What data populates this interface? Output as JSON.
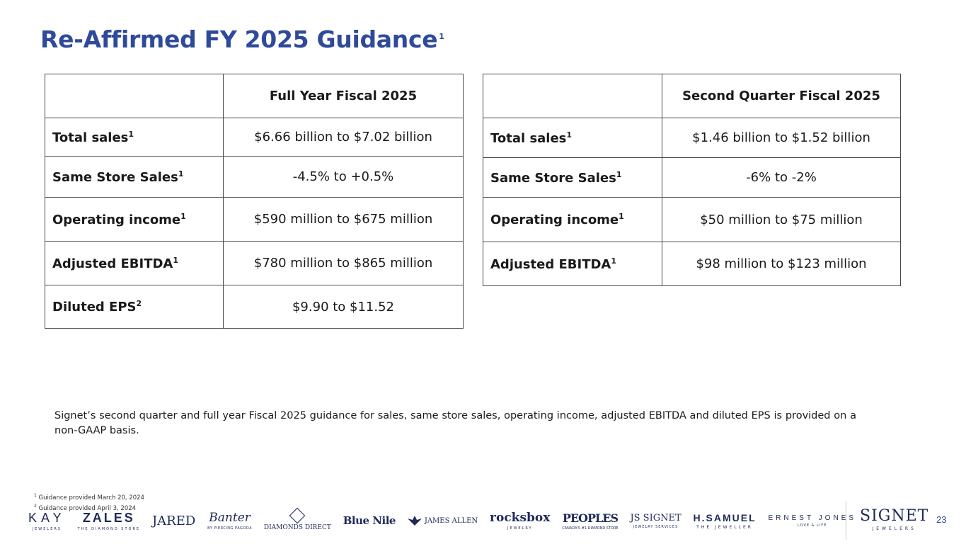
{
  "title": {
    "text": "Re-Affirmed FY 2025 Guidance",
    "sup": "1"
  },
  "full_year": {
    "header": "Full Year Fiscal 2025",
    "rows": [
      {
        "label": "Total sales",
        "sup": "1",
        "value": "$6.66 billion to $7.02 billion"
      },
      {
        "label": "Same Store Sales",
        "sup": "1",
        "value": "-4.5% to +0.5%"
      },
      {
        "label": "Operating income",
        "sup": "1",
        "value": "$590 million to $675 million"
      },
      {
        "label": "Adjusted EBITDA",
        "sup": "1",
        "value": "$780 million to $865 million"
      },
      {
        "label": "Diluted EPS",
        "sup": "2",
        "value": "$9.90 to $11.52"
      }
    ]
  },
  "second_quarter": {
    "header": "Second Quarter Fiscal 2025",
    "rows": [
      {
        "label": "Total sales",
        "sup": "1",
        "value": "$1.46 billion to $1.52 billion"
      },
      {
        "label": "Same Store Sales",
        "sup": "1",
        "value": "-6% to -2%"
      },
      {
        "label": "Operating income",
        "sup": "1",
        "value": "$50 million to $75 million"
      },
      {
        "label": "Adjusted EBITDA",
        "sup": "1",
        "value": "$98 million to $123 million"
      }
    ]
  },
  "note": "Signet’s second quarter and full year Fiscal 2025 guidance for sales, same store sales, operating income, adjusted EBITDA and diluted EPS is provided on a non-GAAP basis.",
  "footnotes": [
    {
      "num": "1",
      "text": "Guidance provided March 20, 2024"
    },
    {
      "num": "2",
      "text": "Guidance provided April 3, 2024"
    }
  ],
  "brands": {
    "kay": {
      "main": "KAY",
      "sub": "JEWELERS"
    },
    "zales": {
      "main": "ZALES",
      "sub": "THE DIAMOND STORE"
    },
    "jared": {
      "main": "JARED"
    },
    "banter": {
      "main": "Banter",
      "sub": "BY PIERCING PAGODA"
    },
    "diamonds_direct": {
      "main": "DIAMONDS DIRECT"
    },
    "blue_nile": {
      "main": "Blue Nile"
    },
    "james_allen": {
      "main": "JAMES ALLEN"
    },
    "rocksbox": {
      "main": "rocksbox",
      "sub": "JEWELRY"
    },
    "peoples": {
      "main": "PEOPLES",
      "sub": "CANADA'S #1 DIAMOND STORE"
    },
    "signet_services": {
      "main": "JS SIGNET",
      "sub": "JEWELRY SERVICES"
    },
    "hsamuel": {
      "main": "H.SAMUEL",
      "sub": "THE JEWELLER"
    },
    "ernest_jones": {
      "main": "ERNEST JONES",
      "sub": "LOVE & LIFE"
    },
    "signet": {
      "main": "SIGNET",
      "sub": "JEWELERS"
    }
  },
  "page_number": "23",
  "colors": {
    "title": "#2f4a9a",
    "border": "#4a4a4a",
    "logo": "#1e2a5a"
  }
}
